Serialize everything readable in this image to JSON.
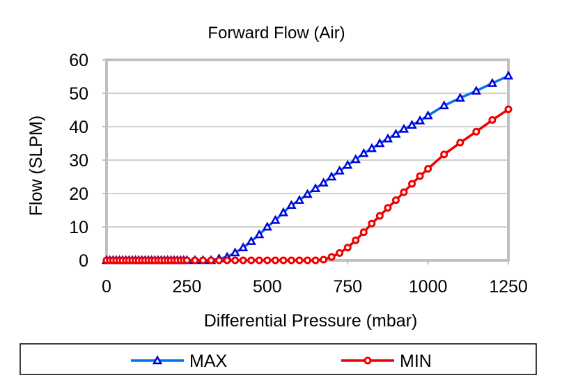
{
  "chart_data": {
    "type": "line",
    "title": "Forward Flow (Air)",
    "xlabel": "Differential Pressure (mbar)",
    "ylabel": "Flow (SLPM)",
    "xlim": [
      0,
      1250
    ],
    "ylim": [
      0,
      60
    ],
    "xticks": [
      0,
      250,
      500,
      750,
      1000,
      1250
    ],
    "yticks": [
      0,
      10,
      20,
      30,
      40,
      50,
      60
    ],
    "grid": "horizontal",
    "legend_position": "bottom",
    "series": [
      {
        "name": "MAX",
        "color": "#0070f0",
        "marker_color": "#0000dd",
        "marker": "triangle",
        "x": [
          0,
          10,
          20,
          30,
          40,
          50,
          60,
          70,
          80,
          90,
          100,
          110,
          120,
          130,
          140,
          150,
          160,
          170,
          180,
          190,
          200,
          210,
          220,
          230,
          240,
          250,
          275,
          300,
          325,
          350,
          375,
          400,
          425,
          450,
          475,
          500,
          525,
          550,
          575,
          600,
          625,
          650,
          675,
          700,
          725,
          750,
          775,
          800,
          825,
          850,
          875,
          900,
          925,
          950,
          975,
          1000,
          1050,
          1100,
          1150,
          1200,
          1250
        ],
        "y": [
          0,
          0,
          0,
          0,
          0,
          0,
          0,
          0,
          0,
          0,
          0,
          0,
          0,
          0,
          0,
          0,
          0,
          0,
          0,
          0,
          0,
          0,
          0,
          0,
          0,
          0,
          0,
          0,
          0,
          0.5,
          1,
          2.3,
          3.8,
          5.7,
          7.7,
          10,
          12,
          14.3,
          16.5,
          18,
          19.8,
          21.5,
          23.2,
          25,
          26.8,
          28.5,
          30.2,
          32,
          33.5,
          35,
          36.4,
          37.8,
          39.3,
          40.5,
          41.8,
          43.3,
          46.3,
          48.6,
          50.7,
          53,
          55.2
        ]
      },
      {
        "name": "MIN",
        "color": "#ee0000",
        "marker_color": "#ee0000",
        "marker": "circle",
        "x": [
          0,
          10,
          20,
          30,
          40,
          50,
          60,
          70,
          80,
          90,
          100,
          110,
          120,
          130,
          140,
          150,
          160,
          170,
          180,
          190,
          200,
          210,
          220,
          230,
          240,
          250,
          275,
          300,
          325,
          350,
          375,
          400,
          425,
          450,
          475,
          500,
          525,
          550,
          575,
          600,
          625,
          650,
          675,
          700,
          725,
          750,
          775,
          800,
          825,
          850,
          875,
          900,
          925,
          950,
          975,
          1000,
          1050,
          1100,
          1150,
          1200,
          1250
        ],
        "y": [
          0,
          0,
          0,
          0,
          0,
          0,
          0,
          0,
          0,
          0,
          0,
          0,
          0,
          0,
          0,
          0,
          0,
          0,
          0,
          0,
          0,
          0,
          0,
          0,
          0,
          0,
          0,
          0,
          0,
          0,
          0,
          0,
          0,
          0,
          0,
          0,
          0,
          0,
          0,
          0,
          0,
          0,
          0.2,
          1,
          2.2,
          3.8,
          6,
          8.4,
          11,
          13.3,
          15.7,
          18,
          20.4,
          22.9,
          25.2,
          27.4,
          31.7,
          35.2,
          38.5,
          42,
          45.2
        ]
      }
    ]
  }
}
